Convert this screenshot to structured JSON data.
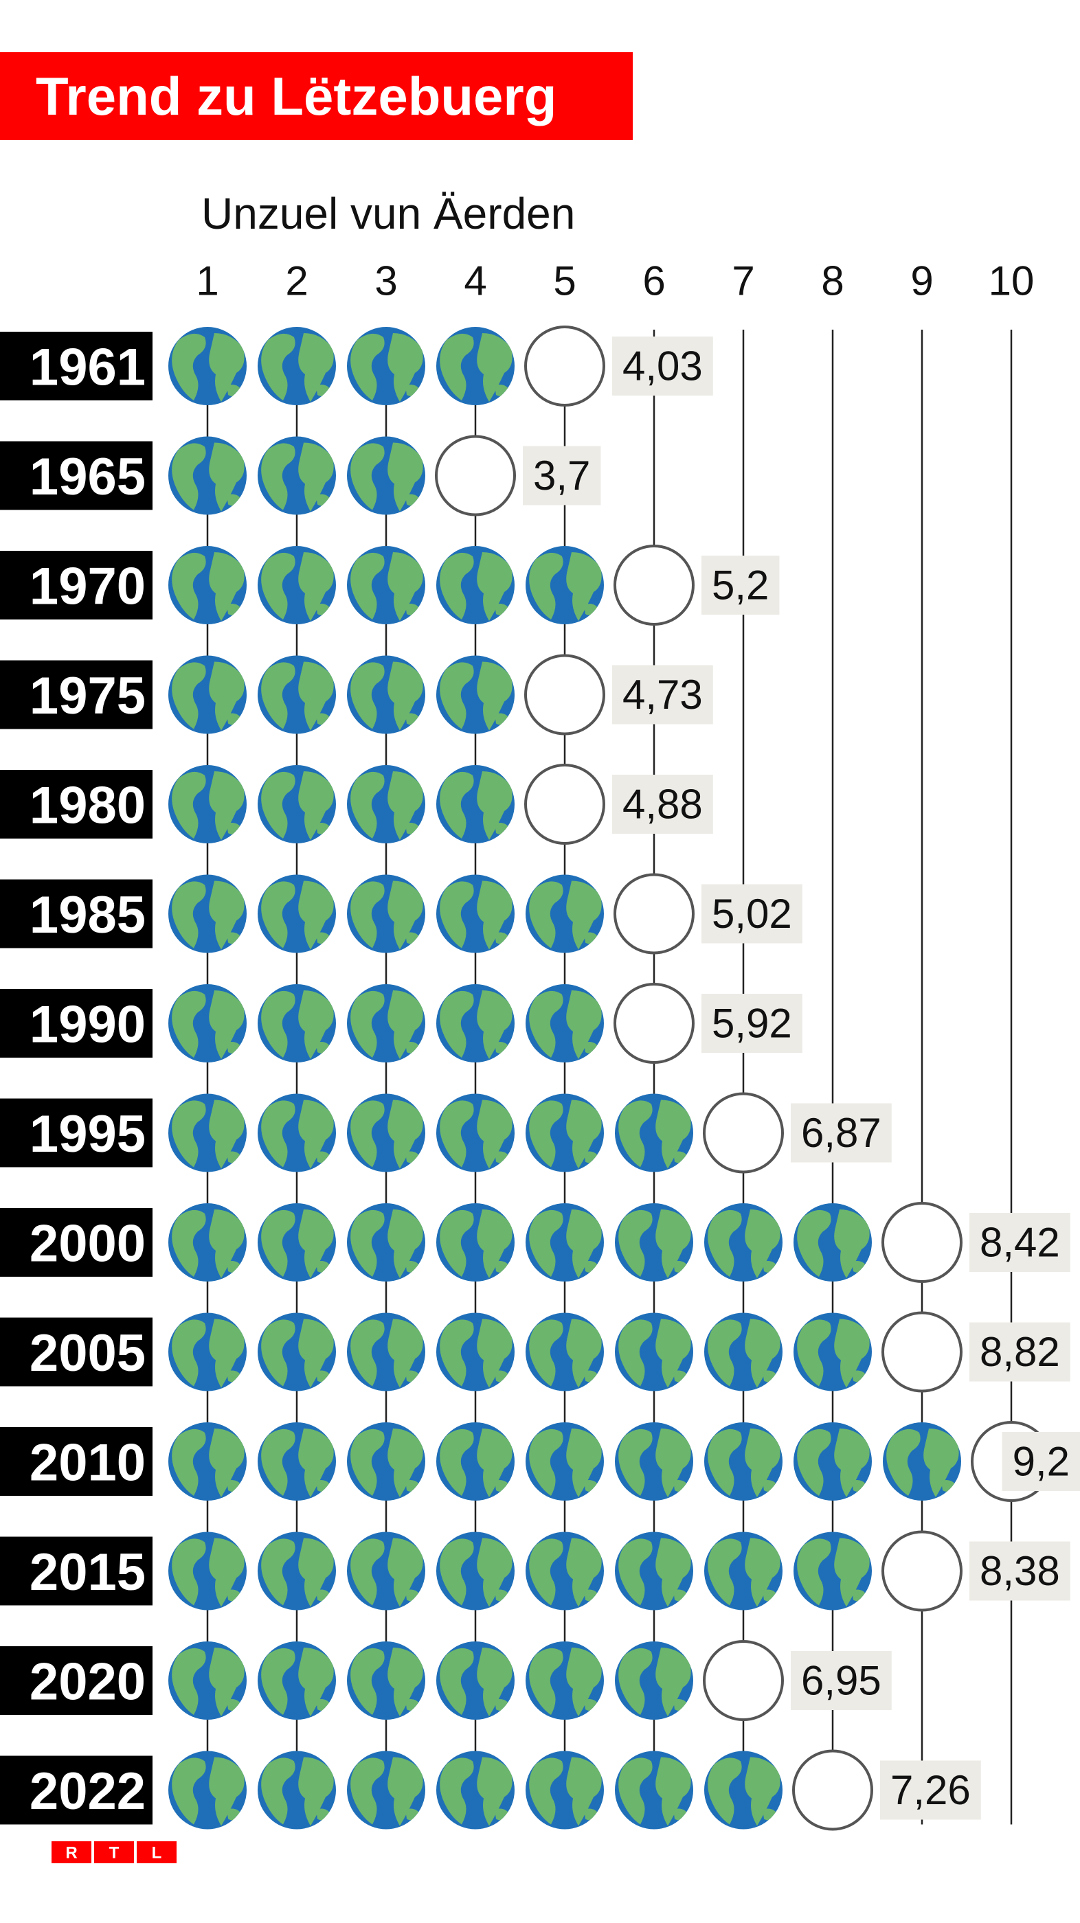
{
  "chart_data": {
    "type": "pictogram",
    "title": "Trend zu Lëtzebuerg",
    "subtitle": "Unzuel vun Äerden",
    "categories": [
      "1961",
      "1965",
      "1970",
      "1975",
      "1980",
      "1985",
      "1990",
      "1995",
      "2000",
      "2005",
      "2010",
      "2015",
      "2020",
      "2022"
    ],
    "values": [
      4.03,
      3.7,
      5.2,
      4.73,
      4.88,
      5.02,
      5.92,
      6.87,
      8.42,
      8.82,
      9.2,
      8.38,
      6.95,
      7.26
    ],
    "value_labels": [
      "4,03",
      "3,7",
      "5,2",
      "4,73",
      "4,88",
      "5,02",
      "5,92",
      "6,87",
      "8,42",
      "8,82",
      "9,2",
      "8,38",
      "6,95",
      "7,26"
    ],
    "xticks": [
      1,
      2,
      3,
      4,
      5,
      6,
      7,
      8,
      9,
      10
    ],
    "title_color": "#ff0000",
    "ocean_color": "#1f6fb8",
    "land_color": "#6cb56c",
    "logo": [
      "R",
      "T",
      "L"
    ]
  }
}
